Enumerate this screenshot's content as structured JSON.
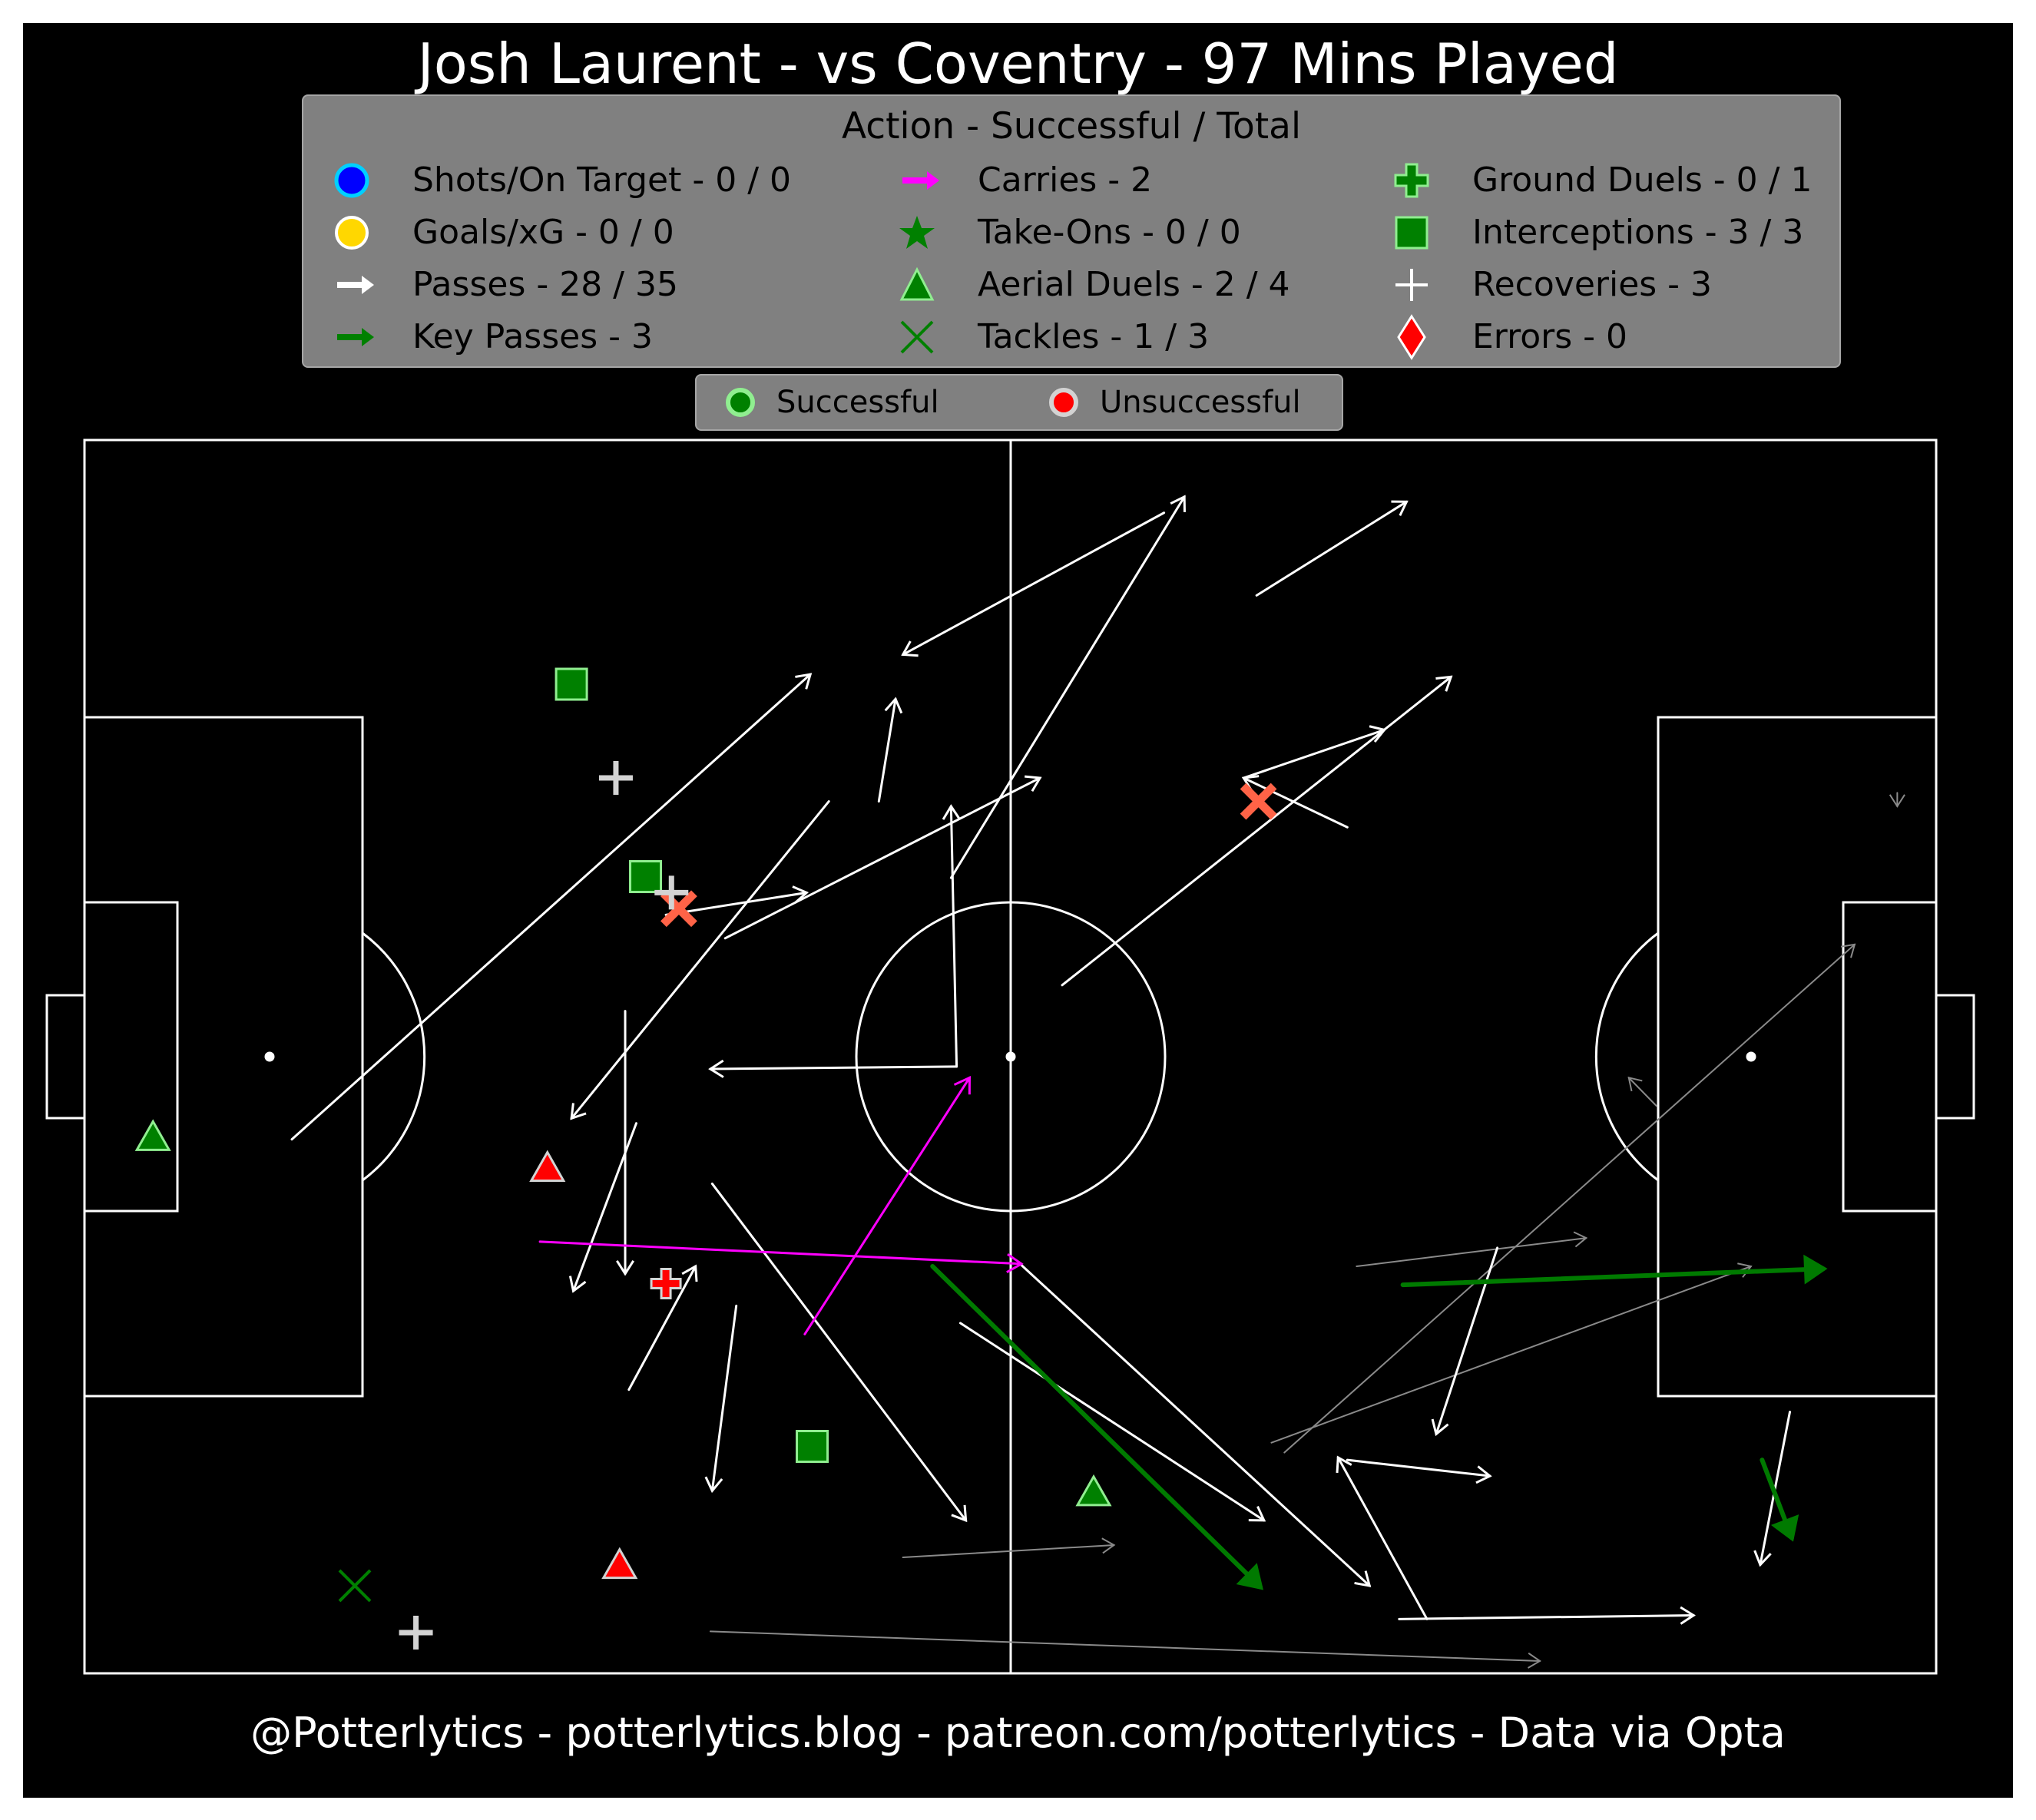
{
  "title": "Josh Laurent - vs Coventry - 97 Mins Played",
  "footer": "@Potterlytics - potterlytics.blog - patreon.com/potterlytics - Data via Opta",
  "legend": {
    "title": "Action - Successful / Total",
    "items": [
      {
        "label": "Shots/On Target - 0 / 0",
        "icon": "circle-blue"
      },
      {
        "label": "Goals/xG - 0 / 0",
        "icon": "circle-gold"
      },
      {
        "label": "Passes - 28 / 35",
        "icon": "arrow-white"
      },
      {
        "label": "Key Passes - 3",
        "icon": "arrow-green"
      },
      {
        "label": "Carries - 2",
        "icon": "arrow-magenta"
      },
      {
        "label": "Take-Ons - 0 / 0",
        "icon": "star-green"
      },
      {
        "label": "Aerial Duels - 2 / 4",
        "icon": "triangle-green"
      },
      {
        "label": "Tackles - 1 / 3",
        "icon": "x-green"
      },
      {
        "label": "Ground Duels - 0 / 1",
        "icon": "plus-green"
      },
      {
        "label": "Interceptions - 3 / 3",
        "icon": "square-green"
      },
      {
        "label": "Recoveries - 3",
        "icon": "plus-white"
      },
      {
        "label": "Errors - 0",
        "icon": "diamond-red"
      }
    ]
  },
  "status_legend": {
    "successful": "Successful",
    "unsuccessful": "Unsuccessful"
  },
  "colors": {
    "background": "#000000",
    "pitch_lines": "#ffffff",
    "legend_bg": "#808080",
    "successful_marker": "#008000",
    "unsuccessful_marker": "#ff0000",
    "key_pass": "#007a00",
    "carry": "#ff00ff",
    "failed_pass": "#808080",
    "tackle_fail": "#ff6347"
  },
  "chart_data": {
    "type": "scatter",
    "pitch": {
      "x_range": [
        0,
        100
      ],
      "y_range": [
        0,
        100
      ],
      "attacking_direction": "right"
    },
    "passes_successful": [
      {
        "x": 11.2,
        "y": 43.3,
        "end_x": 39.2,
        "end_y": 81.0
      },
      {
        "x": 40.2,
        "y": 70.7,
        "end_x": 26.3,
        "end_y": 45.0
      },
      {
        "x": 34.6,
        "y": 59.6,
        "end_x": 51.6,
        "end_y": 72.6
      },
      {
        "x": 42.9,
        "y": 70.7,
        "end_x": 43.8,
        "end_y": 79.0
      },
      {
        "x": 47.1,
        "y": 49.2,
        "end_x": 33.8,
        "end_y": 49.0
      },
      {
        "x": 47.1,
        "y": 49.2,
        "end_x": 46.8,
        "end_y": 70.3
      },
      {
        "x": 46.8,
        "y": 64.5,
        "end_x": 59.4,
        "end_y": 95.4
      },
      {
        "x": 58.3,
        "y": 94.1,
        "end_x": 44.2,
        "end_y": 82.6
      },
      {
        "x": 63.3,
        "y": 87.4,
        "end_x": 71.4,
        "end_y": 95.0
      },
      {
        "x": 52.8,
        "y": 55.8,
        "end_x": 73.8,
        "end_y": 80.8
      },
      {
        "x": 68.2,
        "y": 68.6,
        "end_x": 62.6,
        "end_y": 72.6
      },
      {
        "x": 62.6,
        "y": 72.6,
        "end_x": 70.2,
        "end_y": 76.5
      },
      {
        "x": 29.2,
        "y": 53.7,
        "end_x": 29.2,
        "end_y": 32.4
      },
      {
        "x": 29.8,
        "y": 44.6,
        "end_x": 26.4,
        "end_y": 31.0
      },
      {
        "x": 29.4,
        "y": 23.0,
        "end_x": 33.0,
        "end_y": 33.0
      },
      {
        "x": 35.2,
        "y": 29.8,
        "end_x": 33.9,
        "end_y": 14.8
      },
      {
        "x": 33.9,
        "y": 39.7,
        "end_x": 47.6,
        "end_y": 12.4
      },
      {
        "x": 47.3,
        "y": 28.4,
        "end_x": 63.7,
        "end_y": 12.4
      },
      {
        "x": 50.6,
        "y": 33.1,
        "end_x": 69.4,
        "end_y": 7.1
      },
      {
        "x": 76.3,
        "y": 34.5,
        "end_x": 73.0,
        "end_y": 19.4
      },
      {
        "x": 68.2,
        "y": 17.3,
        "end_x": 75.9,
        "end_y": 16.0
      },
      {
        "x": 72.5,
        "y": 4.4,
        "end_x": 67.7,
        "end_y": 17.5
      },
      {
        "x": 71.0,
        "y": 4.4,
        "end_x": 86.9,
        "end_y": 4.7
      },
      {
        "x": 92.1,
        "y": 21.2,
        "end_x": 90.5,
        "end_y": 8.8
      },
      {
        "x": 31.4,
        "y": 61.5,
        "end_x": 39.0,
        "end_y": 63.3
      }
    ],
    "passes_unsuccessful": [
      {
        "x": 44.2,
        "y": 9.4,
        "end_x": 55.6,
        "end_y": 10.4
      },
      {
        "x": 33.8,
        "y": 3.4,
        "end_x": 78.6,
        "end_y": 1.0
      },
      {
        "x": 64.8,
        "y": 17.9,
        "end_x": 95.6,
        "end_y": 59.1
      },
      {
        "x": 64.1,
        "y": 18.7,
        "end_x": 90.0,
        "end_y": 33.0
      },
      {
        "x": 68.7,
        "y": 33.0,
        "end_x": 81.1,
        "end_y": 35.3
      },
      {
        "x": 84.9,
        "y": 46.0,
        "end_x": 83.4,
        "end_y": 48.3
      },
      {
        "x": 97.9,
        "y": 71.4,
        "end_x": 97.9,
        "end_y": 70.3
      }
    ],
    "key_passes": [
      {
        "x": 45.8,
        "y": 33.0,
        "end_x": 63.5,
        "end_y": 7.0
      },
      {
        "x": 71.2,
        "y": 31.5,
        "end_x": 93.9,
        "end_y": 32.8
      },
      {
        "x": 90.6,
        "y": 17.3,
        "end_x": 92.2,
        "end_y": 11.0
      }
    ],
    "carries": [
      {
        "x": 24.6,
        "y": 35.0,
        "end_x": 50.6,
        "end_y": 33.2
      },
      {
        "x": 38.9,
        "y": 27.5,
        "end_x": 47.8,
        "end_y": 48.3
      }
    ],
    "aerial_duels": [
      {
        "x": 3.7,
        "y": 43.5,
        "success": true
      },
      {
        "x": 54.5,
        "y": 14.7,
        "success": true
      },
      {
        "x": 25.0,
        "y": 41.0,
        "success": false
      },
      {
        "x": 28.9,
        "y": 8.8,
        "success": false
      }
    ],
    "tackles": [
      {
        "x": 14.6,
        "y": 7.1,
        "success": true
      },
      {
        "x": 32.1,
        "y": 62.0,
        "success": false
      },
      {
        "x": 63.4,
        "y": 70.7,
        "success": false
      }
    ],
    "ground_duels": [
      {
        "x": 31.4,
        "y": 31.6,
        "success": false
      }
    ],
    "interceptions": [
      {
        "x": 26.3,
        "y": 80.2,
        "success": true
      },
      {
        "x": 30.3,
        "y": 64.6,
        "success": true
      },
      {
        "x": 39.3,
        "y": 18.4,
        "success": true
      }
    ],
    "recoveries": [
      {
        "x": 28.7,
        "y": 72.6
      },
      {
        "x": 31.7,
        "y": 63.3
      },
      {
        "x": 17.9,
        "y": 3.3
      }
    ]
  }
}
